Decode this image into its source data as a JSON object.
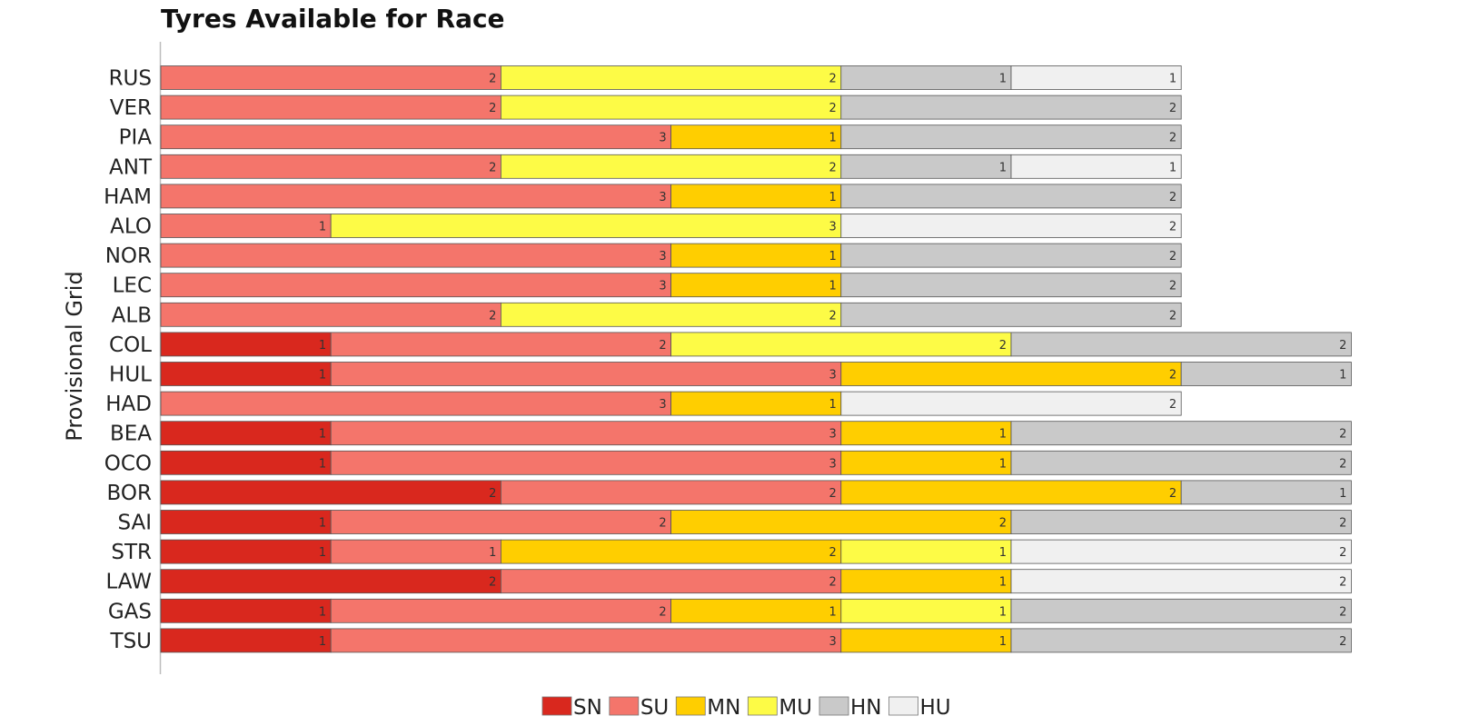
{
  "chart_data": {
    "type": "bar",
    "orientation": "horizontal",
    "stacked": true,
    "title": "Tyres Available for Race",
    "ylabel": "Provisional Grid",
    "xlabel": "",
    "grid": false,
    "legend_position": "bottom",
    "compounds": [
      {
        "code": "SN",
        "color": "#d9281e"
      },
      {
        "code": "SU",
        "color": "#f4756b"
      },
      {
        "code": "MN",
        "color": "#ffce00"
      },
      {
        "code": "MU",
        "color": "#fdfb46"
      },
      {
        "code": "HN",
        "color": "#c9c9c9"
      },
      {
        "code": "HU",
        "color": "#f0f0f0"
      }
    ],
    "drivers": [
      {
        "name": "RUS",
        "segments": [
          {
            "c": "SU",
            "n": 2
          },
          {
            "c": "MU",
            "n": 2
          },
          {
            "c": "HN",
            "n": 1
          },
          {
            "c": "HU",
            "n": 1
          }
        ]
      },
      {
        "name": "VER",
        "segments": [
          {
            "c": "SU",
            "n": 2
          },
          {
            "c": "MU",
            "n": 2
          },
          {
            "c": "HN",
            "n": 2
          }
        ]
      },
      {
        "name": "PIA",
        "segments": [
          {
            "c": "SU",
            "n": 3
          },
          {
            "c": "MN",
            "n": 1
          },
          {
            "c": "HN",
            "n": 2
          }
        ]
      },
      {
        "name": "ANT",
        "segments": [
          {
            "c": "SU",
            "n": 2
          },
          {
            "c": "MU",
            "n": 2
          },
          {
            "c": "HN",
            "n": 1
          },
          {
            "c": "HU",
            "n": 1
          }
        ]
      },
      {
        "name": "HAM",
        "segments": [
          {
            "c": "SU",
            "n": 3
          },
          {
            "c": "MN",
            "n": 1
          },
          {
            "c": "HN",
            "n": 2
          }
        ]
      },
      {
        "name": "ALO",
        "segments": [
          {
            "c": "SU",
            "n": 1
          },
          {
            "c": "MU",
            "n": 3
          },
          {
            "c": "HU",
            "n": 2
          }
        ]
      },
      {
        "name": "NOR",
        "segments": [
          {
            "c": "SU",
            "n": 3
          },
          {
            "c": "MN",
            "n": 1
          },
          {
            "c": "HN",
            "n": 2
          }
        ]
      },
      {
        "name": "LEC",
        "segments": [
          {
            "c": "SU",
            "n": 3
          },
          {
            "c": "MN",
            "n": 1
          },
          {
            "c": "HN",
            "n": 2
          }
        ]
      },
      {
        "name": "ALB",
        "segments": [
          {
            "c": "SU",
            "n": 2
          },
          {
            "c": "MU",
            "n": 2
          },
          {
            "c": "HN",
            "n": 2
          }
        ]
      },
      {
        "name": "COL",
        "segments": [
          {
            "c": "SN",
            "n": 1
          },
          {
            "c": "SU",
            "n": 2
          },
          {
            "c": "MU",
            "n": 2
          },
          {
            "c": "HN",
            "n": 2
          }
        ]
      },
      {
        "name": "HUL",
        "segments": [
          {
            "c": "SN",
            "n": 1
          },
          {
            "c": "SU",
            "n": 3
          },
          {
            "c": "MN",
            "n": 2
          },
          {
            "c": "HN",
            "n": 1
          }
        ]
      },
      {
        "name": "HAD",
        "segments": [
          {
            "c": "SU",
            "n": 3
          },
          {
            "c": "MN",
            "n": 1
          },
          {
            "c": "HU",
            "n": 2
          }
        ]
      },
      {
        "name": "BEA",
        "segments": [
          {
            "c": "SN",
            "n": 1
          },
          {
            "c": "SU",
            "n": 3
          },
          {
            "c": "MN",
            "n": 1
          },
          {
            "c": "HN",
            "n": 2
          }
        ]
      },
      {
        "name": "OCO",
        "segments": [
          {
            "c": "SN",
            "n": 1
          },
          {
            "c": "SU",
            "n": 3
          },
          {
            "c": "MN",
            "n": 1
          },
          {
            "c": "HN",
            "n": 2
          }
        ]
      },
      {
        "name": "BOR",
        "segments": [
          {
            "c": "SN",
            "n": 2
          },
          {
            "c": "SU",
            "n": 2
          },
          {
            "c": "MN",
            "n": 2
          },
          {
            "c": "HN",
            "n": 1
          }
        ]
      },
      {
        "name": "SAI",
        "segments": [
          {
            "c": "SN",
            "n": 1
          },
          {
            "c": "SU",
            "n": 2
          },
          {
            "c": "MN",
            "n": 2
          },
          {
            "c": "HN",
            "n": 2
          }
        ]
      },
      {
        "name": "STR",
        "segments": [
          {
            "c": "SN",
            "n": 1
          },
          {
            "c": "SU",
            "n": 1
          },
          {
            "c": "MN",
            "n": 2
          },
          {
            "c": "MU",
            "n": 1
          },
          {
            "c": "HU",
            "n": 2
          }
        ]
      },
      {
        "name": "LAW",
        "segments": [
          {
            "c": "SN",
            "n": 2
          },
          {
            "c": "SU",
            "n": 2
          },
          {
            "c": "MN",
            "n": 1
          },
          {
            "c": "HU",
            "n": 2
          }
        ]
      },
      {
        "name": "GAS",
        "segments": [
          {
            "c": "SN",
            "n": 1
          },
          {
            "c": "SU",
            "n": 2
          },
          {
            "c": "MN",
            "n": 1
          },
          {
            "c": "MU",
            "n": 1
          },
          {
            "c": "HN",
            "n": 2
          }
        ]
      },
      {
        "name": "TSU",
        "segments": [
          {
            "c": "SN",
            "n": 1
          },
          {
            "c": "SU",
            "n": 3
          },
          {
            "c": "MN",
            "n": 1
          },
          {
            "c": "HN",
            "n": 2
          }
        ]
      }
    ]
  }
}
